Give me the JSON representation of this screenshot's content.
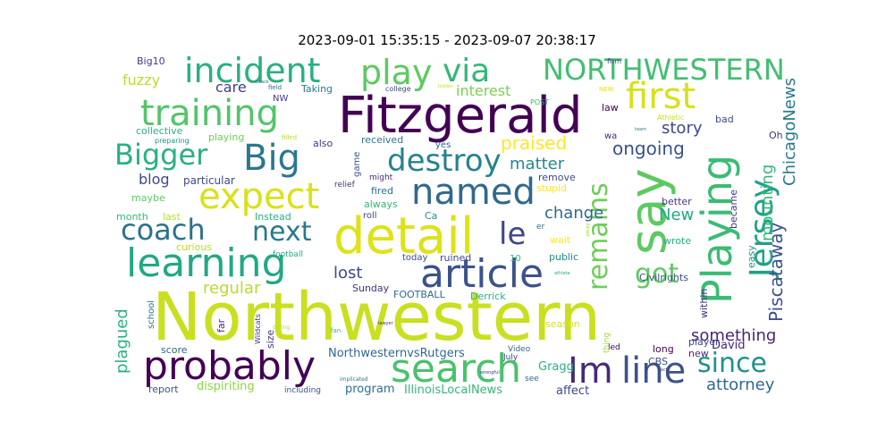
{
  "title": "2023-09-01 15:35:15 - 2023-09-07 20:38:17",
  "palette": "viridis",
  "words": [
    {
      "text": "Northwestern",
      "color": "#c8e020"
    },
    {
      "text": "Fitzgerald",
      "color": "#440154"
    },
    {
      "text": "detail",
      "color": "#dde318"
    },
    {
      "text": "say",
      "color": "#5ec962"
    },
    {
      "text": "Playing",
      "color": "#3bbb75"
    },
    {
      "text": "search",
      "color": "#4ac16d"
    },
    {
      "text": "probably",
      "color": "#440154"
    },
    {
      "text": "learning",
      "color": "#22a884"
    },
    {
      "text": "article",
      "color": "#3b528b"
    },
    {
      "text": "expect",
      "color": "#d8e219"
    },
    {
      "text": "named",
      "color": "#31688e"
    },
    {
      "text": "Big",
      "color": "#2a788e"
    },
    {
      "text": "training",
      "color": "#52c569"
    },
    {
      "text": "incident",
      "color": "#2ab07f"
    },
    {
      "text": "first",
      "color": "#d5e21a"
    },
    {
      "text": "line",
      "color": "#3b528b"
    },
    {
      "text": "Im",
      "color": "#482878"
    },
    {
      "text": "Jersey",
      "color": "#1fa188"
    },
    {
      "text": "play",
      "color": "#5ec962"
    },
    {
      "text": "via",
      "color": "#35b779"
    },
    {
      "text": "NORTHWESTERN",
      "color": "#42be71"
    },
    {
      "text": "destroy",
      "color": "#26828e"
    },
    {
      "text": "Bigger",
      "color": "#2ab07f"
    },
    {
      "text": "coach",
      "color": "#2c718e"
    },
    {
      "text": "next",
      "color": "#2a788e"
    },
    {
      "text": "le",
      "color": "#404688"
    },
    {
      "text": "remains",
      "color": "#6ece58"
    },
    {
      "text": "since",
      "color": "#21918c"
    },
    {
      "text": "got",
      "color": "#5ec962"
    },
    {
      "text": "Piscataway",
      "color": "#3b528b"
    },
    {
      "text": "ChicagoNews",
      "color": "#2a788e"
    },
    {
      "text": "mounting",
      "color": "#35b779"
    },
    {
      "text": "attorney",
      "color": "#31688e"
    },
    {
      "text": "something",
      "color": "#482475"
    },
    {
      "text": "story",
      "color": "#3e4989"
    },
    {
      "text": "ongoing",
      "color": "#3b528b"
    },
    {
      "text": "praised",
      "color": "#fde725"
    },
    {
      "text": "matter",
      "color": "#23898e"
    },
    {
      "text": "change",
      "color": "#31688e"
    },
    {
      "text": "New",
      "color": "#22a884"
    },
    {
      "text": "lost",
      "color": "#3e4989"
    },
    {
      "text": "regular",
      "color": "#b5de2b"
    },
    {
      "text": "plagued",
      "color": "#2ab07f"
    },
    {
      "text": "blog",
      "color": "#3e4989"
    },
    {
      "text": "care",
      "color": "#433e85"
    },
    {
      "text": "interest",
      "color": "#7ad151"
    },
    {
      "text": "fuzzy",
      "color": "#b8de29"
    },
    {
      "text": "Big10",
      "color": "#443983"
    },
    {
      "text": "dispiriting",
      "color": "#8fd744"
    },
    {
      "text": "program",
      "color": "#2c718e"
    },
    {
      "text": "IllinoisLocalNews",
      "color": "#35b779"
    },
    {
      "text": "NorthwesternvsRutgers",
      "color": "#31688e"
    },
    {
      "text": "Gragg",
      "color": "#2ab07f"
    },
    {
      "text": "affect",
      "color": "#3e4989"
    },
    {
      "text": "David",
      "color": "#482878"
    },
    {
      "text": "Civilrights",
      "color": "#3e4989"
    },
    {
      "text": "particular",
      "color": "#3e4989"
    },
    {
      "text": "collective",
      "color": "#2ab07f"
    },
    {
      "text": "playing",
      "color": "#6ece58"
    },
    {
      "text": "received",
      "color": "#2a788e"
    },
    {
      "text": "fired",
      "color": "#2c718e"
    },
    {
      "text": "always",
      "color": "#35b779"
    },
    {
      "text": "ruined",
      "color": "#3e4989"
    },
    {
      "text": "FOOTBALL",
      "color": "#31688e"
    },
    {
      "text": "Sunday",
      "color": "#46337f"
    },
    {
      "text": "Derrick",
      "color": "#2ab07f"
    },
    {
      "text": "Ca",
      "color": "#21918c"
    },
    {
      "text": "public",
      "color": "#21918c"
    },
    {
      "text": "wait",
      "color": "#fde725"
    },
    {
      "text": "season",
      "color": "#d8e219"
    },
    {
      "text": "remove",
      "color": "#3e4989"
    },
    {
      "text": "stupid",
      "color": "#fde725"
    },
    {
      "text": "roll",
      "color": "#404688"
    },
    {
      "text": "today",
      "color": "#3e4989"
    },
    {
      "text": "10",
      "color": "#35b779"
    },
    {
      "text": "better",
      "color": "#453781"
    },
    {
      "text": "wrote",
      "color": "#2ab07f"
    },
    {
      "text": "easy",
      "color": "#21918c"
    },
    {
      "text": "became",
      "color": "#443983"
    },
    {
      "text": "within",
      "color": "#46337f"
    },
    {
      "text": "player",
      "color": "#3e4989"
    },
    {
      "text": "long",
      "color": "#440154"
    },
    {
      "text": "new",
      "color": "#482878"
    },
    {
      "text": "CBS",
      "color": "#3b528b"
    },
    {
      "text": "led",
      "color": "#440154"
    },
    {
      "text": "bad",
      "color": "#3e4989"
    },
    {
      "text": "Oh",
      "color": "#46337f"
    },
    {
      "text": "law",
      "color": "#440154"
    },
    {
      "text": "wa",
      "color": "#482878"
    },
    {
      "text": "yes",
      "color": "#31688e"
    },
    {
      "text": "also",
      "color": "#46337f"
    },
    {
      "text": "game",
      "color": "#3b528b"
    },
    {
      "text": "might",
      "color": "#482878"
    },
    {
      "text": "relief",
      "color": "#46337f"
    },
    {
      "text": "month",
      "color": "#35b779"
    },
    {
      "text": "last",
      "color": "#b5de2b"
    },
    {
      "text": "maybe",
      "color": "#5ec962"
    },
    {
      "text": "Instead",
      "color": "#2ab07f"
    },
    {
      "text": "curious",
      "color": "#b5de2b"
    },
    {
      "text": "football",
      "color": "#22a884"
    },
    {
      "text": "school",
      "color": "#2c718e"
    },
    {
      "text": "far",
      "color": "#482878"
    },
    {
      "text": "size",
      "color": "#453781"
    },
    {
      "text": "score",
      "color": "#31688e"
    },
    {
      "text": "report",
      "color": "#3b528b"
    },
    {
      "text": "including",
      "color": "#3b528b"
    },
    {
      "text": "Video",
      "color": "#31688e"
    },
    {
      "text": "July",
      "color": "#404688"
    },
    {
      "text": "see",
      "color": "#31688e"
    },
    {
      "text": "thing",
      "color": "#a0da39"
    },
    {
      "text": "er",
      "color": "#31688e"
    },
    {
      "text": "NW",
      "color": "#443983"
    },
    {
      "text": "Taking",
      "color": "#2a788e"
    },
    {
      "text": "college",
      "color": "#3e4989"
    },
    {
      "text": "firm",
      "color": "#3e4989"
    },
    {
      "text": "POST",
      "color": "#35b779"
    },
    {
      "text": "NEW",
      "color": "#dde318"
    },
    {
      "text": "Athletic",
      "color": "#c8e020"
    },
    {
      "text": "preparing",
      "color": "#21918c"
    },
    {
      "text": "filled",
      "color": "#b5de2b"
    },
    {
      "text": "field",
      "color": "#31688e"
    },
    {
      "text": "Wildcats",
      "color": "#46337f"
    },
    {
      "text": "fan",
      "color": "#35b779"
    },
    {
      "text": "implicated",
      "color": "#2a788e"
    },
    {
      "text": "away",
      "color": "#a0da39"
    },
    {
      "text": "during",
      "color": "#b5de2b"
    },
    {
      "text": "hidden",
      "color": "#c8e020"
    },
    {
      "text": "wrongful",
      "color": "#46337f"
    },
    {
      "text": "team",
      "color": "#2a788e"
    },
    {
      "text": "athlete",
      "color": "#22a884"
    },
    {
      "text": "attack",
      "color": "#31688e"
    },
    {
      "text": "lawyer",
      "color": "#482878"
    },
    {
      "text": "fact",
      "color": "#3e4989"
    }
  ]
}
